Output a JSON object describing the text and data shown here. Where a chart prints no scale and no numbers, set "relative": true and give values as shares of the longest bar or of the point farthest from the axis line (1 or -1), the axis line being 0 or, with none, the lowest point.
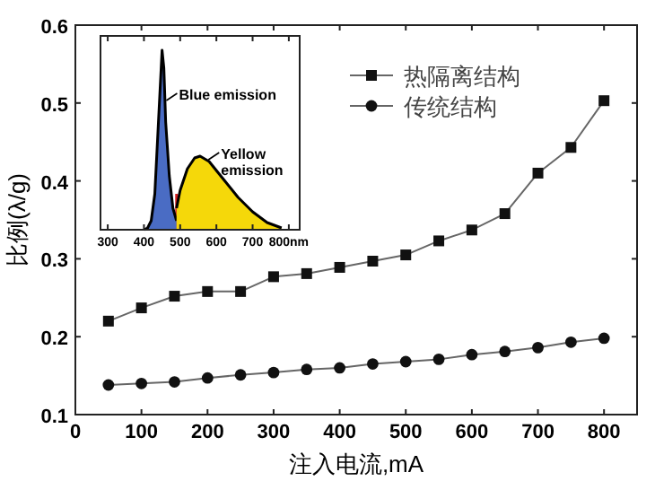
{
  "chart_data": [
    {
      "type": "line",
      "xlabel": "注入电流,mA",
      "ylabel": "比例(λ/g)",
      "x": [
        50,
        100,
        150,
        200,
        250,
        300,
        350,
        400,
        450,
        500,
        550,
        600,
        650,
        700,
        750,
        800
      ],
      "xlim": [
        0,
        850
      ],
      "xticks": [
        0,
        100,
        200,
        300,
        400,
        500,
        600,
        700,
        800
      ],
      "ylim": [
        0.1,
        0.6
      ],
      "yticks": [
        0.1,
        0.2,
        0.3,
        0.4,
        0.5,
        0.6
      ],
      "legend": "top right",
      "series": [
        {
          "name": "热隔离结构",
          "color": "#111111",
          "marker": "square",
          "values": [
            0.22,
            0.237,
            0.252,
            0.258,
            0.258,
            0.277,
            0.281,
            0.289,
            0.297,
            0.305,
            0.323,
            0.337,
            0.358,
            0.41,
            0.443,
            0.503
          ]
        },
        {
          "name": "传统结构",
          "color": "#111111",
          "marker": "circle",
          "values": [
            0.138,
            0.14,
            0.142,
            0.147,
            0.151,
            0.154,
            0.158,
            0.16,
            0.165,
            0.168,
            0.171,
            0.177,
            0.181,
            0.186,
            0.193,
            0.198
          ]
        }
      ]
    },
    {
      "type": "area",
      "relative": true,
      "tick_labels": "x",
      "xlim": [
        280,
        830
      ],
      "xticks": [
        300,
        400,
        500,
        600,
        700,
        {
          "value": 800,
          "label": "800nm"
        }
      ],
      "series": [
        {
          "color": "#4a6cc4",
          "x": [
            400,
            410,
            420,
            430,
            440,
            450,
            455,
            460,
            470,
            480,
            490
          ],
          "values": [
            0,
            0.01,
            0.05,
            0.2,
            0.6,
            1,
            0.9,
            0.6,
            0.3,
            0.12,
            0.05
          ]
        },
        {
          "color": "#f5d80a",
          "x": [
            490,
            500,
            520,
            540,
            555,
            580,
            620,
            660,
            700,
            740,
            780
          ],
          "values": [
            0.12,
            0.22,
            0.34,
            0.4,
            0.41,
            0.38,
            0.28,
            0.18,
            0.1,
            0.04,
            0.01
          ]
        }
      ],
      "ref_lines": [
        {
          "axis": "x",
          "value": 490,
          "color": "#d02020"
        }
      ],
      "annotations": [
        {
          "text": "Blue emission",
          "x": 462,
          "y": 0.72
        },
        {
          "text": "Yellow emission",
          "x": 578,
          "y": 0.39
        }
      ]
    }
  ]
}
